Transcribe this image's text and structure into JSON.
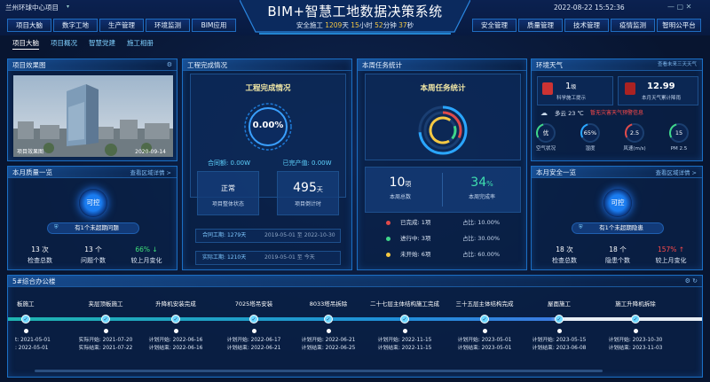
{
  "header": {
    "project": "兰州环球中心项目",
    "title": "BIM+智慧工地数据决策系统",
    "safety": {
      "label": "安全施工",
      "days": "1209",
      "days_unit": "天",
      "hours": "15",
      "hours_unit": "小时",
      "minutes": "52",
      "minutes_unit": "分钟",
      "seconds": "37",
      "seconds_unit": "秒"
    },
    "datetime": "2022-08-22 15:52:36",
    "left_nav": [
      "项目大脑",
      "数字工地",
      "生产管理",
      "环境监测",
      "BIM应用"
    ],
    "right_nav": [
      "安全管理",
      "质量管理",
      "技术管理",
      "疫情监测",
      "智明公平台"
    ]
  },
  "tabs": [
    "项目大脑",
    "项目概况",
    "智慧党建",
    "施工相册"
  ],
  "rendering": {
    "title": "项目效果图",
    "caption": "项目效果图",
    "date": "2020-09-14"
  },
  "completion": {
    "title": "工程完成情况",
    "inner_title": "工程完成情况",
    "percent": "0.00%",
    "contract": "合同额: 0.00W",
    "output": "已完产值: 0.00W",
    "status": "正常",
    "status_label": "项目整体状态",
    "countdown": "495",
    "countdown_unit": "天",
    "countdown_label": "项目倒计时",
    "contract_period": {
      "label": "合同工期:",
      "days": "1279天",
      "start": "2019-05-01",
      "to": "至",
      "end": "2022-10-30"
    },
    "actual_period": {
      "label": "实际工期:",
      "days": "1210天",
      "start": "2019-05-01",
      "to": "至",
      "end": "今天"
    }
  },
  "tasks": {
    "title": "本周任务统计",
    "inner_title": "本周任务统计",
    "total": "10",
    "total_unit": "项",
    "total_label": "本周总数",
    "rate": "34",
    "rate_unit": "%",
    "rate_label": "本周完成率",
    "rows": [
      {
        "label": "已完成: 1项",
        "share": "占比: 10.00%"
      },
      {
        "label": "进行中: 3项",
        "share": "占比: 30.00%"
      },
      {
        "label": "未开始: 6项",
        "share": "占比: 60.00%"
      }
    ]
  },
  "weather": {
    "title": "环境天气",
    "link": "查看未来三天天气",
    "level": "1",
    "level_unit": "级",
    "level_label": "科学施工提示",
    "rain": "12.99",
    "rain_label": "本月天气累计降雨",
    "condition": "多云",
    "temp": "23 ℃",
    "warning": "暂无灾害天气预警信息",
    "gauges": [
      {
        "value": "优",
        "label": "空气状况"
      },
      {
        "value": "65%",
        "label": "湿度"
      },
      {
        "value": "2.5",
        "label": "风速(m/s)"
      },
      {
        "value": "15",
        "label": "PM 2.5"
      }
    ]
  },
  "quality": {
    "title": "本月质量一览",
    "link": "查看区域详情 >",
    "state": "可控",
    "notice": "有1个未超期问题",
    "stats": [
      {
        "value": "13 次",
        "label": "检查总数"
      },
      {
        "value": "13 个",
        "label": "问题个数"
      },
      {
        "value": "66% ↓",
        "label": "较上月变化"
      }
    ]
  },
  "safety_panel": {
    "title": "本月安全一览",
    "link": "查看区域详情 >",
    "state": "可控",
    "notice": "有1个未超期隐患",
    "stats": [
      {
        "value": "18 次",
        "label": "检查总数"
      },
      {
        "value": "18 个",
        "label": "隐患个数"
      },
      {
        "value": "157% ↑",
        "label": "较上月变化"
      }
    ]
  },
  "timeline": {
    "title": "5#综合办公楼",
    "items": [
      {
        "label": "板施工",
        "start": "t: 2021-05-01",
        "end": ": 2022-05-01"
      },
      {
        "label": "夹层顶板施工",
        "start": "实际开始: 2021-07-20",
        "end": "实际结束: 2021-07-22"
      },
      {
        "label": "升降机安装完成",
        "start": "计划开始: 2022-06-16",
        "end": "计划结束: 2022-06-16"
      },
      {
        "label": "7025塔吊安装",
        "start": "计划开始: 2022-06-17",
        "end": "计划结束: 2022-06-21"
      },
      {
        "label": "8033塔吊拆除",
        "start": "计划开始: 2022-06-21",
        "end": "计划结束: 2022-06-25"
      },
      {
        "label": "二十七层主体结构施工完成",
        "start": "计划开始: 2022-11-15",
        "end": "计划结束: 2022-11-15"
      },
      {
        "label": "三十五层主体结构完成",
        "start": "计划开始: 2023-05-01",
        "end": "计划结束: 2023-05-01"
      },
      {
        "label": "屋面施工",
        "start": "计划开始: 2023-05-15",
        "end": "计划结束: 2023-06-08"
      },
      {
        "label": "施工升降机拆除",
        "start": "计划开始: 2023-10-30",
        "end": "计划结束: 2023-11-03"
      }
    ]
  }
}
